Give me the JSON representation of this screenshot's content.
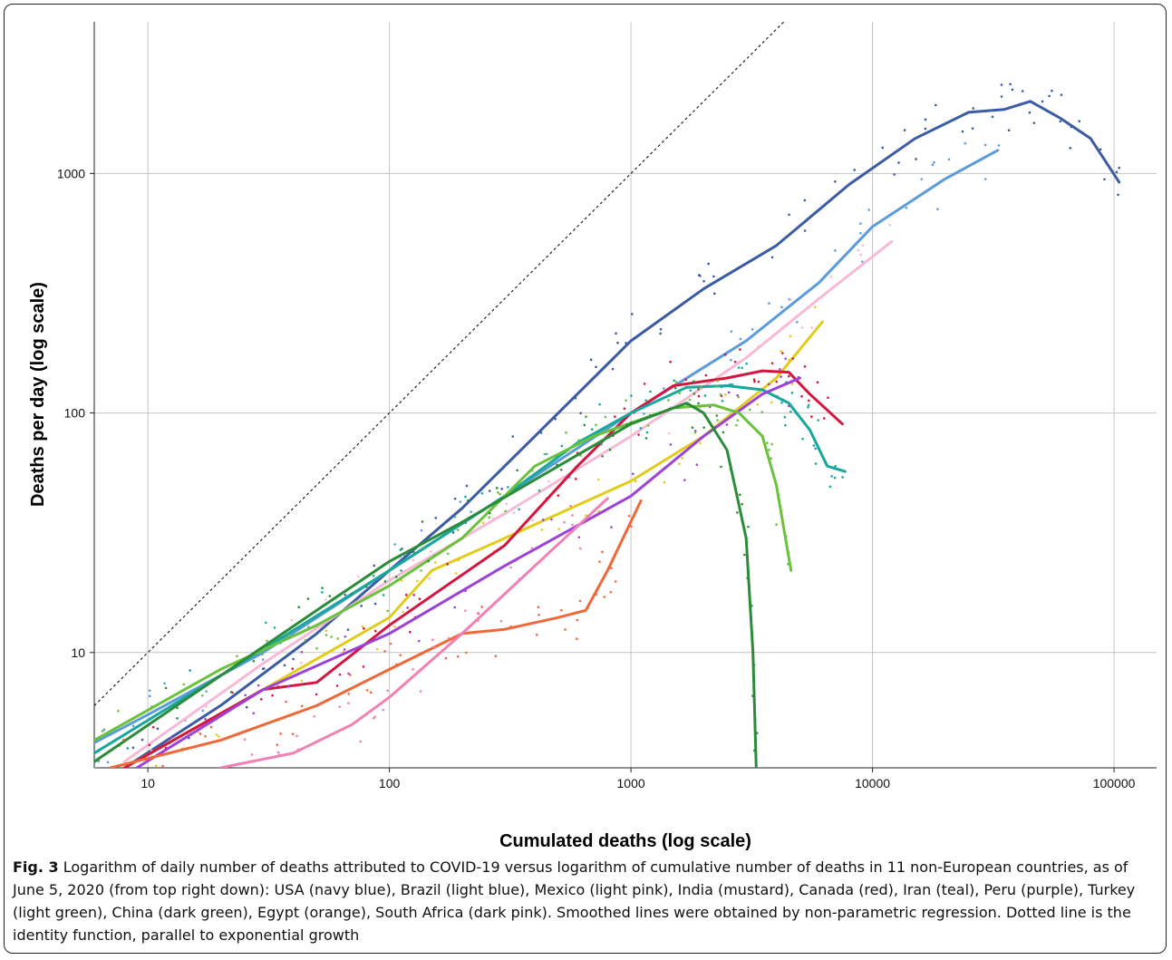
{
  "caption": {
    "label": "Fig. 3",
    "text": "Logarithm of daily number of deaths attributed to COVID-19 versus logarithm of cumulative number of deaths in 11 non-European countries, as of June 5, 2020 (from top right down): USA (navy blue), Brazil (light blue), Mexico (light pink), India (mustard), Canada (red), Iran (teal), Peru (purple), Turkey (light green), China (dark green), Egypt (orange), South Africa (dark pink). Smoothed lines were obtained by non-parametric regression. Dotted line is the identity function, parallel to exponential growth"
  },
  "chart_data": {
    "type": "line",
    "title": "",
    "xlabel": "Cumulated deaths (log scale)",
    "ylabel": "Deaths per day (log scale)",
    "x_scale": "log",
    "y_scale": "log",
    "xlim": [
      6,
      150000
    ],
    "ylim": [
      3.3,
      4300
    ],
    "x_ticks": [
      10,
      100,
      1000,
      10000,
      100000
    ],
    "x_tick_labels": [
      "10",
      "100",
      "1000",
      "10000",
      "100000"
    ],
    "y_ticks": [
      10,
      100,
      1000
    ],
    "y_tick_labels": [
      "10",
      "100",
      "1000"
    ],
    "grid": true,
    "legend": "none",
    "reference_line": {
      "name": "identity",
      "style": "dotted",
      "points": [
        [
          6,
          6
        ],
        [
          4300,
          4300
        ]
      ]
    },
    "series": [
      {
        "color": "#3B5BA5",
        "points": [
          [
            8,
            3.3
          ],
          [
            20,
            6
          ],
          [
            50,
            12
          ],
          [
            100,
            22
          ],
          [
            200,
            40
          ],
          [
            400,
            80
          ],
          [
            700,
            140
          ],
          [
            1000,
            200
          ],
          [
            2000,
            330
          ],
          [
            4000,
            500
          ],
          [
            8000,
            900
          ],
          [
            15000,
            1400
          ],
          [
            25000,
            1800
          ],
          [
            35000,
            1850
          ],
          [
            45000,
            2000
          ],
          [
            60000,
            1700
          ],
          [
            80000,
            1400
          ],
          [
            105000,
            920
          ]
        ]
      },
      {
        "color": "#5A9BDC",
        "points": [
          [
            6,
            4.2
          ],
          [
            10,
            5.5
          ],
          [
            30,
            10
          ],
          [
            100,
            22
          ],
          [
            300,
            45
          ],
          [
            1000,
            100
          ],
          [
            3000,
            200
          ],
          [
            6000,
            350
          ],
          [
            10000,
            600
          ],
          [
            20000,
            950
          ],
          [
            33000,
            1250
          ]
        ]
      },
      {
        "color": "#F7B9D5",
        "points": [
          [
            8,
            3.5
          ],
          [
            30,
            9
          ],
          [
            100,
            20
          ],
          [
            300,
            38
          ],
          [
            1000,
            80
          ],
          [
            3000,
            170
          ],
          [
            6000,
            300
          ],
          [
            12000,
            520
          ]
        ]
      },
      {
        "color": "#E1CC1C",
        "points": [
          [
            8,
            3.3
          ],
          [
            30,
            7
          ],
          [
            100,
            14
          ],
          [
            150,
            22
          ],
          [
            300,
            30
          ],
          [
            1000,
            52
          ],
          [
            2000,
            80
          ],
          [
            4000,
            140
          ],
          [
            6200,
            240
          ]
        ]
      },
      {
        "color": "#D6153F",
        "points": [
          [
            8,
            3.3
          ],
          [
            30,
            7
          ],
          [
            50,
            7.5
          ],
          [
            100,
            13
          ],
          [
            300,
            28
          ],
          [
            600,
            60
          ],
          [
            1000,
            100
          ],
          [
            1500,
            130
          ],
          [
            2500,
            140
          ],
          [
            3500,
            150
          ],
          [
            4500,
            148
          ],
          [
            5500,
            120
          ],
          [
            7500,
            90
          ]
        ]
      },
      {
        "color": "#18A79C",
        "points": [
          [
            6,
            3.8
          ],
          [
            20,
            8
          ],
          [
            100,
            22
          ],
          [
            300,
            45
          ],
          [
            600,
            75
          ],
          [
            1000,
            100
          ],
          [
            1700,
            128
          ],
          [
            2500,
            130
          ],
          [
            3500,
            125
          ],
          [
            4500,
            110
          ],
          [
            5500,
            85
          ],
          [
            6500,
            60
          ],
          [
            7700,
            57
          ]
        ]
      },
      {
        "color": "#9C42D9",
        "points": [
          [
            9,
            3.3
          ],
          [
            30,
            7
          ],
          [
            100,
            12
          ],
          [
            300,
            23
          ],
          [
            1000,
            45
          ],
          [
            2000,
            80
          ],
          [
            3500,
            120
          ],
          [
            5000,
            140
          ]
        ]
      },
      {
        "color": "#69C23A",
        "points": [
          [
            6,
            4.3
          ],
          [
            20,
            8.5
          ],
          [
            50,
            13
          ],
          [
            100,
            19
          ],
          [
            200,
            30
          ],
          [
            400,
            60
          ],
          [
            700,
            80
          ],
          [
            1500,
            105
          ],
          [
            2200,
            108
          ],
          [
            2800,
            100
          ],
          [
            3500,
            80
          ],
          [
            4000,
            50
          ],
          [
            4600,
            22
          ]
        ]
      },
      {
        "color": "#2A8C38",
        "points": [
          [
            6,
            3.5
          ],
          [
            20,
            8
          ],
          [
            50,
            15
          ],
          [
            100,
            24
          ],
          [
            200,
            35
          ],
          [
            500,
            60
          ],
          [
            1000,
            90
          ],
          [
            1700,
            110
          ],
          [
            2000,
            100
          ],
          [
            2500,
            70
          ],
          [
            3000,
            30
          ],
          [
            3200,
            10
          ],
          [
            3300,
            3.3
          ]
        ]
      },
      {
        "color": "#F0683A",
        "points": [
          [
            7,
            3.3
          ],
          [
            20,
            4.3
          ],
          [
            50,
            6
          ],
          [
            100,
            8.5
          ],
          [
            200,
            12
          ],
          [
            300,
            12.5
          ],
          [
            500,
            14
          ],
          [
            650,
            15
          ],
          [
            800,
            22
          ],
          [
            1100,
            43
          ]
        ]
      },
      {
        "color": "#F280B4",
        "points": [
          [
            20,
            3.3
          ],
          [
            40,
            3.8
          ],
          [
            70,
            5
          ],
          [
            100,
            6.5
          ],
          [
            200,
            12
          ],
          [
            400,
            23
          ],
          [
            800,
            44
          ]
        ]
      }
    ]
  }
}
